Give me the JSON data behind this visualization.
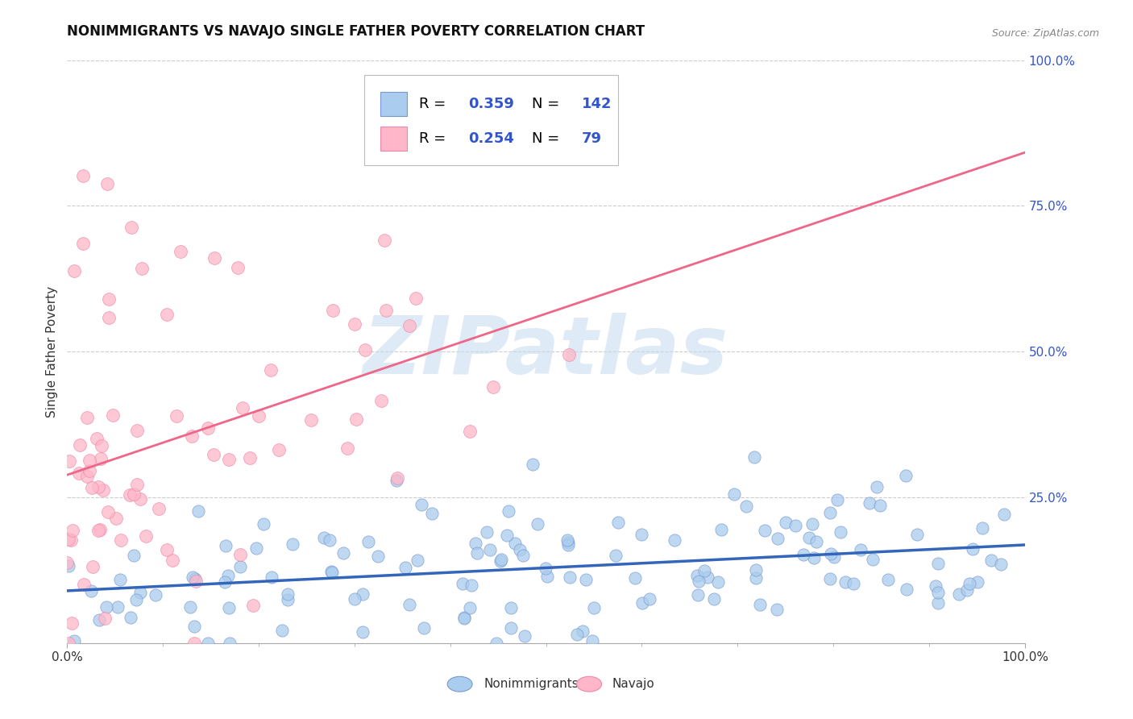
{
  "title": "NONIMMIGRANTS VS NAVAJO SINGLE FATHER POVERTY CORRELATION CHART",
  "source": "Source: ZipAtlas.com",
  "ylabel": "Single Father Poverty",
  "watermark": "ZIPatlas",
  "xlim": [
    0,
    1
  ],
  "ylim": [
    0,
    1
  ],
  "xtick_labels": [
    "0.0%",
    "100.0%"
  ],
  "xtick_positions": [
    0.0,
    1.0
  ],
  "right_ytick_positions": [
    0.25,
    0.5,
    0.75,
    1.0
  ],
  "right_ytick_labels": [
    "25.0%",
    "50.0%",
    "75.0%",
    "100.0%"
  ],
  "series1_name": "Nonimmigrants",
  "series1_color": "#aaccee",
  "series1_edge_color": "#7799cc",
  "series1_line_color": "#3366bb",
  "series1_R": 0.359,
  "series1_N": 142,
  "series2_name": "Navajo",
  "series2_color": "#ffb6c8",
  "series2_edge_color": "#ee88aa",
  "series2_line_color": "#ee6688",
  "series2_R": 0.254,
  "series2_N": 79,
  "legend_text_color": "#000000",
  "legend_value_color": "#3355cc",
  "background_color": "#ffffff",
  "grid_color": "#cccccc",
  "title_fontsize": 12,
  "axis_label_fontsize": 11,
  "tick_fontsize": 11,
  "watermark_color": "#c8ddf0",
  "watermark_alpha": 0.6,
  "seed1": 7,
  "seed2": 13
}
